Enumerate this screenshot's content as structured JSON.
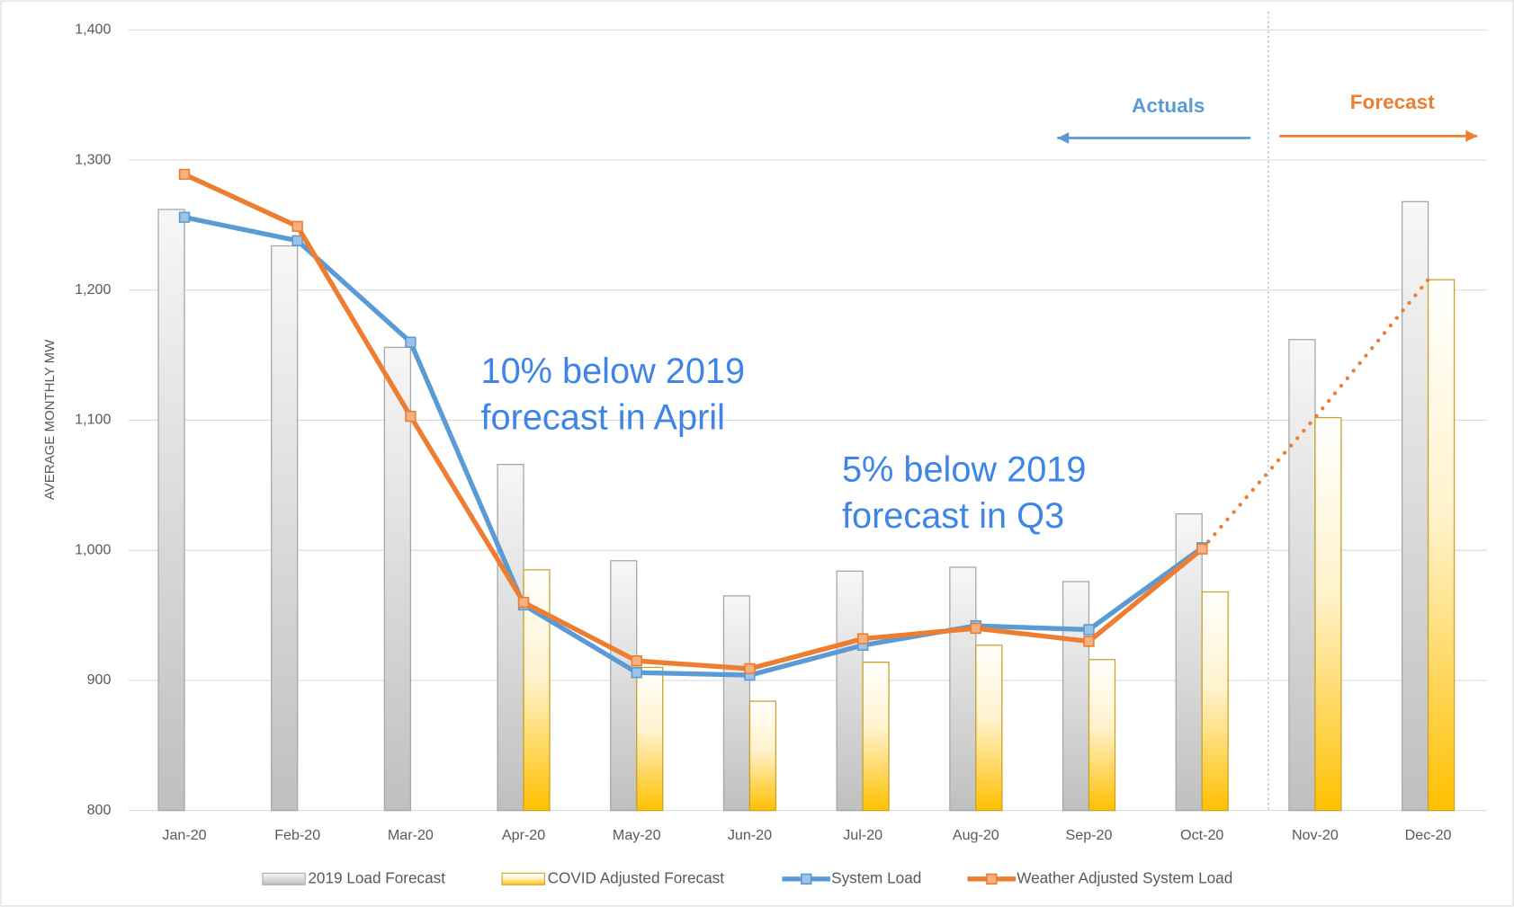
{
  "chart_data": {
    "type": "bar_line",
    "y_axis_label": "AVERAGE MONTHLY MW",
    "categories": [
      "Jan-20",
      "Feb-20",
      "Mar-20",
      "Apr-20",
      "May-20",
      "Jun-20",
      "Jul-20",
      "Aug-20",
      "Sep-20",
      "Oct-20",
      "Nov-20",
      "Dec-20"
    ],
    "ylim": [
      800,
      1400
    ],
    "yticks": [
      800,
      900,
      {
        "value": 1000,
        "label": "1,000"
      },
      {
        "value": 1100,
        "label": "1,100"
      },
      {
        "value": 1200,
        "label": "1,200"
      },
      {
        "value": 1300,
        "label": "1,300"
      },
      {
        "value": 1400,
        "label": "1,400"
      }
    ],
    "grid": true,
    "legend": "bottom",
    "series": [
      {
        "name": "2019 Load Forecast",
        "kind": "bar",
        "color": "#bfbfbf",
        "values": [
          1262,
          1234,
          1156,
          1066,
          992,
          965,
          984,
          987,
          976,
          1028,
          1162,
          1268
        ]
      },
      {
        "name": "COVID Adjusted Forecast",
        "kind": "bar",
        "color": "#ffc000",
        "values": [
          null,
          null,
          null,
          985,
          910,
          884,
          914,
          927,
          916,
          968,
          1102,
          1208
        ]
      },
      {
        "name": "System Load",
        "kind": "line",
        "color": "#5b9bd5",
        "values": [
          1256,
          1238,
          1160,
          958,
          906,
          904,
          927,
          942,
          939,
          1002,
          null,
          null
        ]
      },
      {
        "name": "Weather Adjusted System Load",
        "kind": "line",
        "color": "#ed7d31",
        "values": [
          1289,
          1249,
          1103,
          960,
          915,
          909,
          932,
          940,
          930,
          1001,
          null,
          null
        ]
      }
    ],
    "projection": {
      "color": "#ed7d31",
      "style": "dotted",
      "values": [
        null,
        null,
        null,
        null,
        null,
        null,
        null,
        null,
        null,
        1001,
        1102,
        1208
      ]
    },
    "annotations": [
      {
        "lines": [
          "10% below 2019",
          "forecast in April"
        ],
        "color": "#3d85e6"
      },
      {
        "lines": [
          "5% below 2019",
          "forecast in Q3"
        ],
        "color": "#3d85e6"
      }
    ],
    "regions": [
      {
        "text": "Actuals",
        "color": "#5b9bd5"
      },
      {
        "text": "Forecast",
        "color": "#ed7d31"
      }
    ]
  }
}
